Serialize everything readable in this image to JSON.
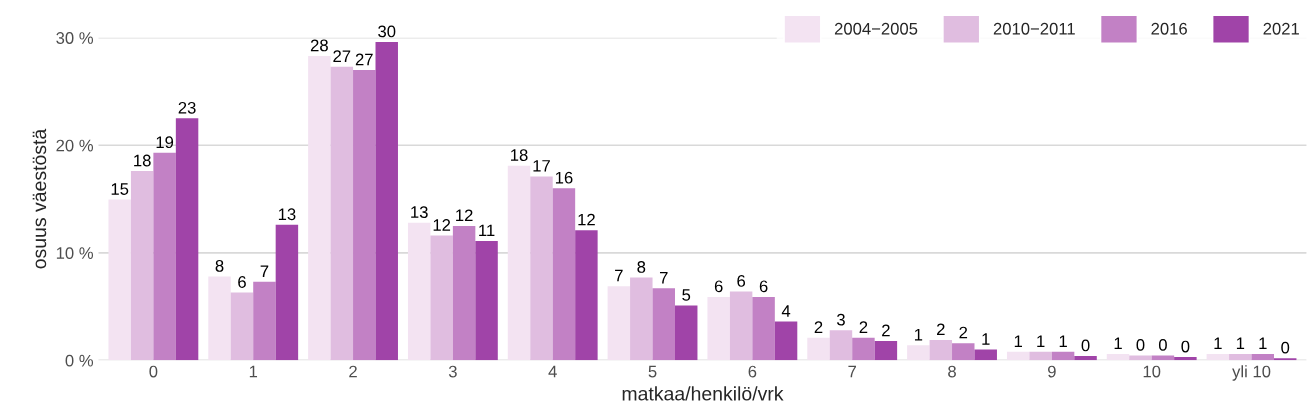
{
  "chart_data": {
    "type": "bar",
    "xlabel": "matkaa/henkilö/vrk",
    "ylabel": "osuus väestöstä",
    "categories": [
      "0",
      "1",
      "2",
      "3",
      "4",
      "5",
      "6",
      "7",
      "8",
      "9",
      "10",
      "yli 10"
    ],
    "series": [
      {
        "name": "2004−2005",
        "color": "#f3e3f2",
        "values": [
          14.95,
          7.8,
          28.3,
          12.8,
          18.1,
          6.9,
          5.9,
          2.1,
          1.4,
          0.8,
          0.6,
          0.6
        ],
        "value_labels": [
          "15",
          "8",
          "28",
          "13",
          "18",
          "7",
          "6",
          "2",
          "1",
          "1",
          "1",
          "1"
        ]
      },
      {
        "name": "2010−2011",
        "color": "#e0bde0",
        "values": [
          17.6,
          6.3,
          27.3,
          11.6,
          17.1,
          7.7,
          6.4,
          2.8,
          1.9,
          0.8,
          0.45,
          0.6
        ],
        "value_labels": [
          "18",
          "6",
          "27",
          "12",
          "17",
          "8",
          "6",
          "3",
          "2",
          "1",
          "0",
          "1"
        ]
      },
      {
        "name": "2016",
        "color": "#c281c5",
        "values": [
          19.3,
          7.3,
          27.0,
          12.5,
          16.0,
          6.7,
          5.9,
          2.1,
          1.6,
          0.8,
          0.45,
          0.6
        ],
        "value_labels": [
          "19",
          "7",
          "27",
          "12",
          "16",
          "7",
          "6",
          "2",
          "2",
          "1",
          "0",
          "1"
        ]
      },
      {
        "name": "2021",
        "color": "#a044a8",
        "values": [
          22.5,
          12.6,
          29.6,
          11.1,
          12.1,
          5.1,
          3.6,
          1.8,
          1.0,
          0.4,
          0.3,
          0.2
        ],
        "value_labels": [
          "23",
          "13",
          "30",
          "11",
          "12",
          "5",
          "4",
          "2",
          "1",
          "0",
          "0",
          "0"
        ]
      }
    ],
    "yticks": [
      {
        "value": 0,
        "label": "0 %"
      },
      {
        "value": 10,
        "label": "10 %"
      },
      {
        "value": 20,
        "label": "20 %"
      },
      {
        "value": 30,
        "label": "30 %"
      }
    ],
    "ylim": [
      0,
      30
    ],
    "grid": "y",
    "legend": "top right"
  }
}
